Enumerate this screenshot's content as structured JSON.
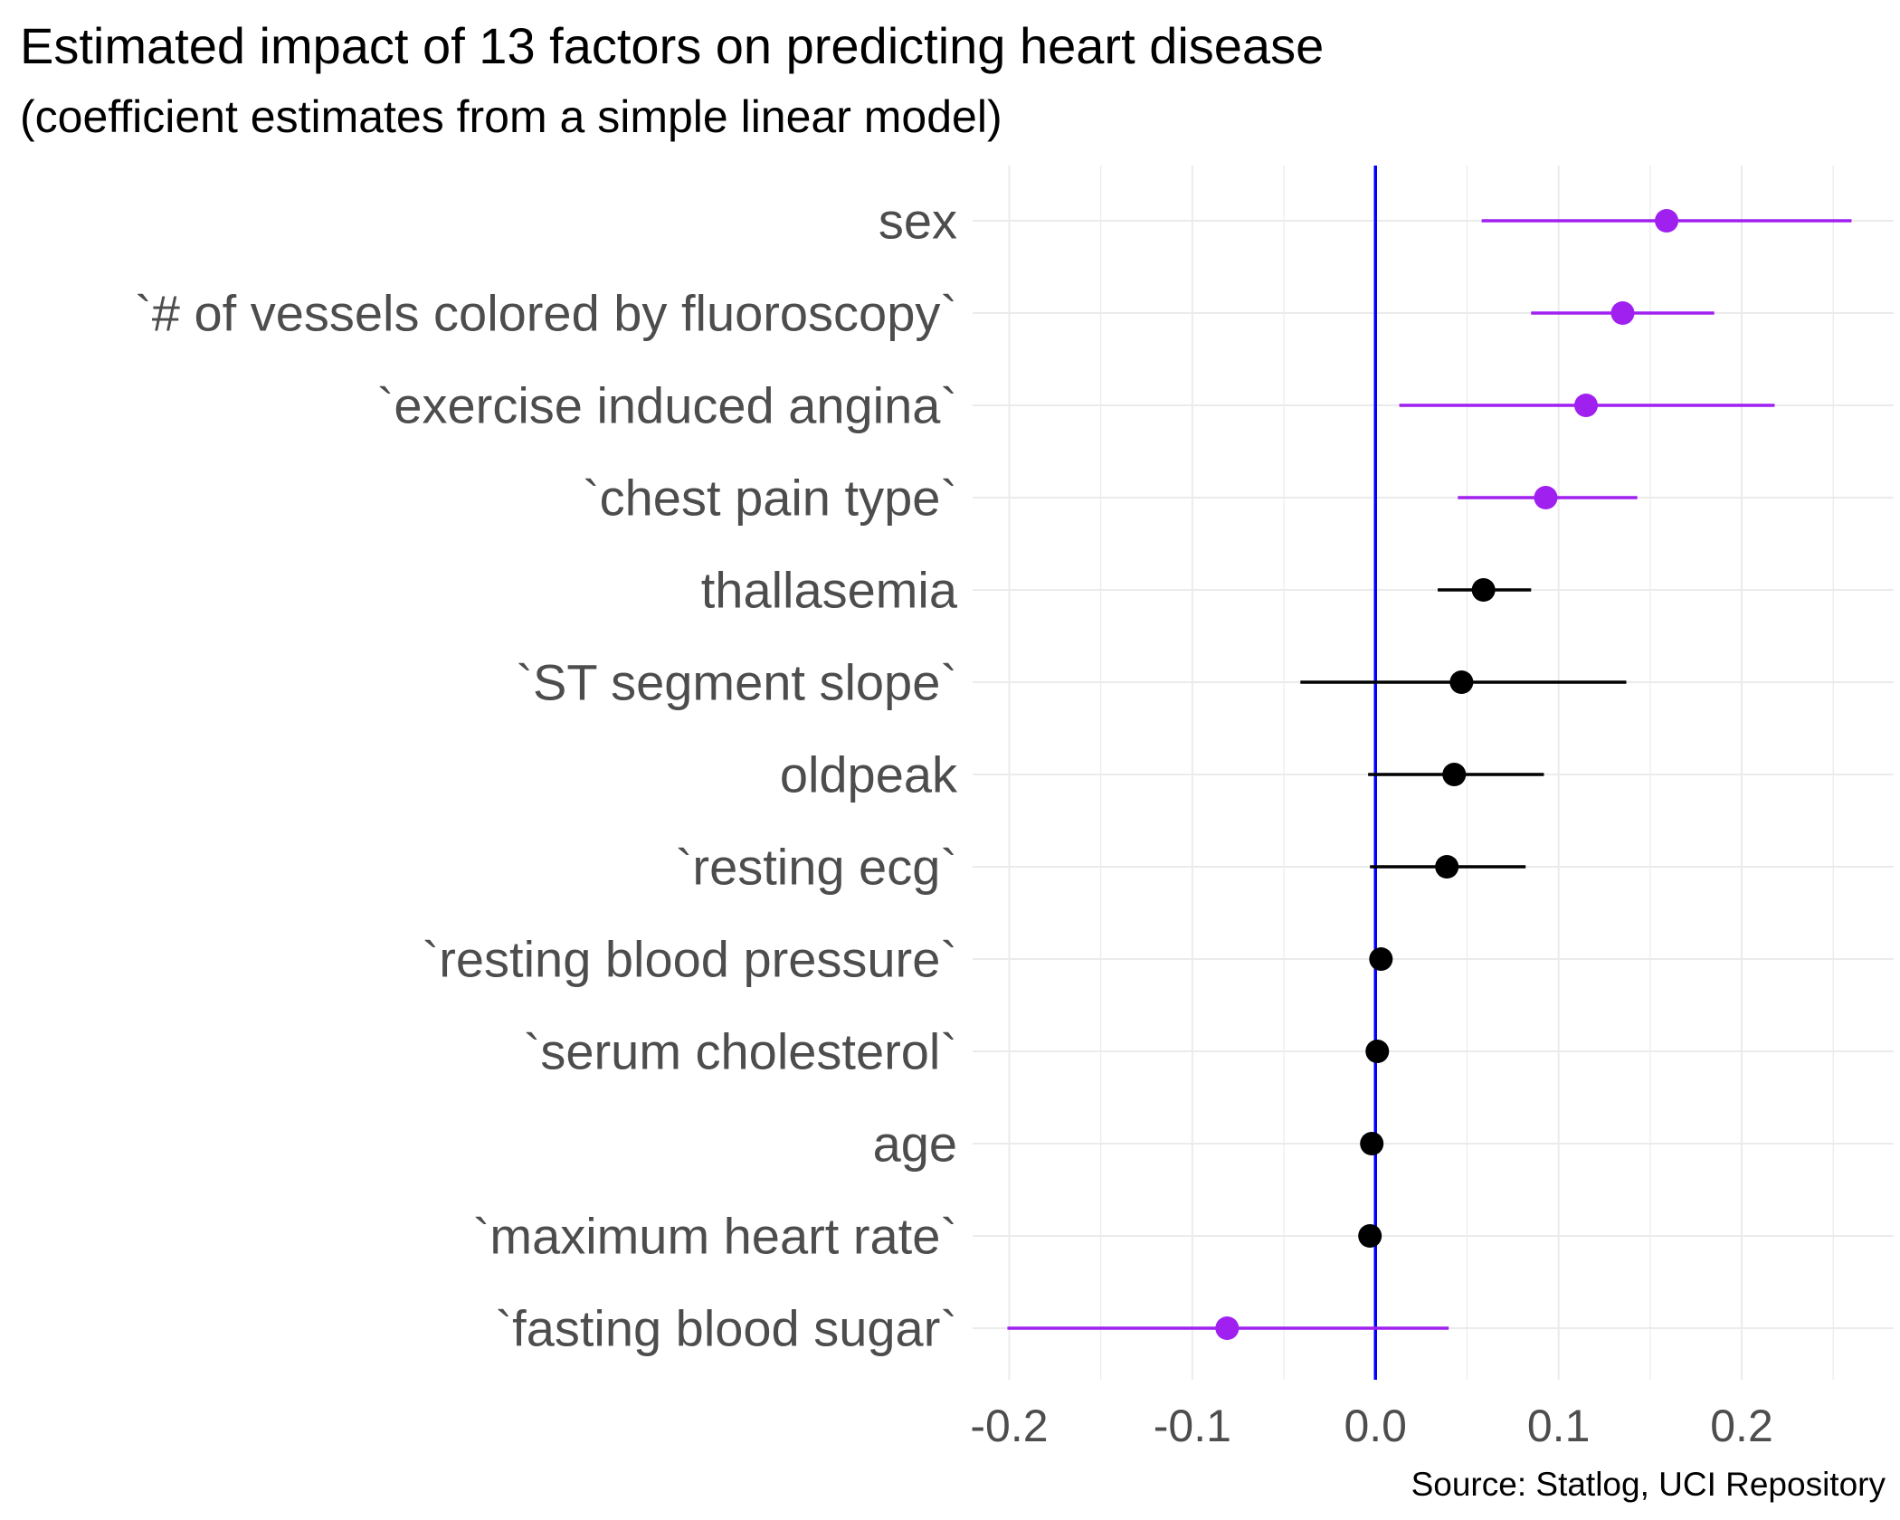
{
  "chart_data": {
    "type": "scatter",
    "title": "Estimated impact of 13 factors on predicting heart disease",
    "subtitle": "(coefficient estimates from a simple linear model)",
    "caption": "Source: Statlog, UCI Repository",
    "xlim": [
      -0.22,
      0.283
    ],
    "x_ticks": [
      -0.2,
      -0.1,
      0.0,
      0.1,
      0.2
    ],
    "x_tick_labels": [
      "-0.2",
      "-0.1",
      "0.0",
      "0.1",
      "0.2"
    ],
    "reference_line": 0.0,
    "grid": true,
    "colors": {
      "significant": "#a020f0",
      "not_significant": "#000000",
      "reference_line": "#0000ff",
      "grid": "#ebebeb",
      "label": "#4d4d4d"
    },
    "points": [
      {
        "label": "sex",
        "estimate": 0.159,
        "low": 0.058,
        "high": 0.26,
        "significant": true
      },
      {
        "label": "`# of vessels colored by fluoroscopy`",
        "estimate": 0.135,
        "low": 0.085,
        "high": 0.185,
        "significant": true
      },
      {
        "label": "`exercise induced angina`",
        "estimate": 0.115,
        "low": 0.013,
        "high": 0.218,
        "significant": true
      },
      {
        "label": "`chest pain type`",
        "estimate": 0.093,
        "low": 0.045,
        "high": 0.143,
        "significant": true
      },
      {
        "label": "thallasemia",
        "estimate": 0.059,
        "low": 0.034,
        "high": 0.085,
        "significant": false
      },
      {
        "label": "`ST segment slope`",
        "estimate": 0.047,
        "low": -0.041,
        "high": 0.137,
        "significant": false
      },
      {
        "label": "oldpeak",
        "estimate": 0.043,
        "low": -0.004,
        "high": 0.092,
        "significant": false
      },
      {
        "label": "`resting ecg`",
        "estimate": 0.039,
        "low": -0.003,
        "high": 0.082,
        "significant": false
      },
      {
        "label": "`resting blood pressure`",
        "estimate": 0.003,
        "low": 0.001,
        "high": 0.005,
        "significant": false
      },
      {
        "label": "`serum cholesterol`",
        "estimate": 0.001,
        "low": 0.0,
        "high": 0.002,
        "significant": false
      },
      {
        "label": "age",
        "estimate": -0.002,
        "low": -0.005,
        "high": 0.001,
        "significant": false
      },
      {
        "label": "`maximum heart rate`",
        "estimate": -0.003,
        "low": -0.005,
        "high": -0.001,
        "significant": false
      },
      {
        "label": "`fasting blood sugar`",
        "estimate": -0.081,
        "low": -0.201,
        "high": 0.04,
        "significant": true
      }
    ]
  }
}
